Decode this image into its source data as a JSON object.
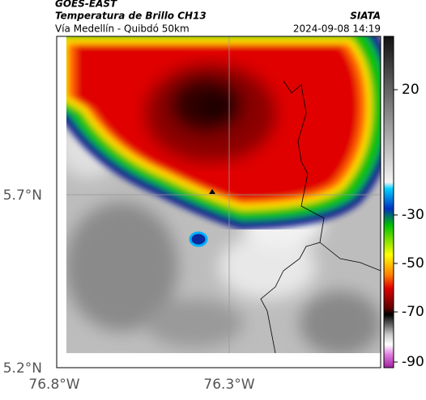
{
  "header": {
    "title": "GOES-EAST",
    "subtitle": "Temperatura de Brillo CH13",
    "source": "SIATA",
    "location": "Vía Medellín - Quibdó 50km",
    "datetime": "2024-09-08 14:19"
  },
  "axes": {
    "latitude_labels": [
      "5.7°N",
      "5.2°N"
    ],
    "longitude_labels": [
      "76.8°W",
      "76.3°W"
    ]
  },
  "colorbar": {
    "labels": [
      "20",
      "-30",
      "-50",
      "-70",
      "-90"
    ]
  }
}
